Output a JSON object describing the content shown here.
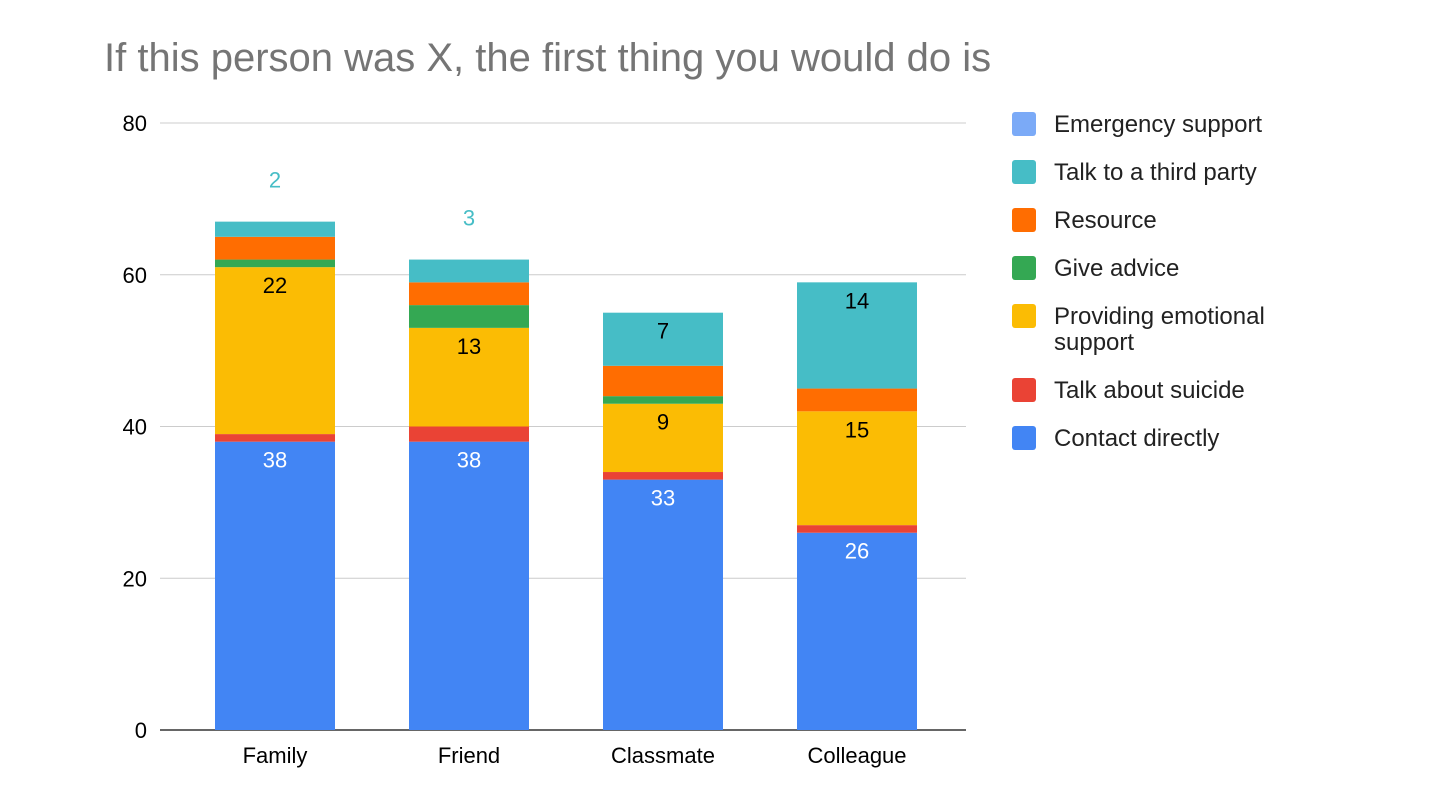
{
  "chart_data": {
    "type": "bar",
    "stacked": true,
    "title": "If this person was X, the first thing you would do is",
    "xlabel": "",
    "ylabel": "",
    "ylim": [
      0,
      80
    ],
    "yticks": [
      0,
      20,
      40,
      60,
      80
    ],
    "grid": true,
    "legend_position": "right",
    "categories": [
      "Family",
      "Friend",
      "Classmate",
      "Colleague"
    ],
    "series": [
      {
        "name": "Contact directly",
        "color": "#4285f4",
        "values": [
          38,
          38,
          33,
          26
        ],
        "labels": [
          "38",
          "38",
          "33",
          "26"
        ],
        "label_color": "#ffffff"
      },
      {
        "name": "Talk about suicide",
        "color": "#ea4335",
        "values": [
          1,
          2,
          1,
          1
        ],
        "labels": [
          "",
          "",
          "",
          ""
        ],
        "label_color": "#000000"
      },
      {
        "name": "Providing emotional support",
        "color": "#fbbc04",
        "values": [
          22,
          13,
          9,
          15
        ],
        "labels": [
          "22",
          "13",
          "9",
          "15"
        ],
        "label_color": "#000000"
      },
      {
        "name": "Give advice",
        "color": "#34a853",
        "values": [
          1,
          3,
          1,
          0
        ],
        "labels": [
          "",
          "",
          "",
          ""
        ],
        "label_color": "#000000"
      },
      {
        "name": "Resource",
        "color": "#ff6d01",
        "values": [
          3,
          3,
          4,
          3
        ],
        "labels": [
          "",
          "",
          "",
          ""
        ],
        "label_color": "#000000"
      },
      {
        "name": "Talk to a third party",
        "color": "#46bdc6",
        "values": [
          2,
          3,
          7,
          14
        ],
        "labels": [
          "2",
          "3",
          "7",
          "14"
        ],
        "label_color": "#000000"
      },
      {
        "name": "Emergency support",
        "color": "#7baaf7",
        "values": [
          0,
          0,
          0,
          0
        ],
        "labels": [
          "",
          "",
          "",
          ""
        ],
        "label_color": "#000000"
      }
    ],
    "legend_order": [
      "Emergency support",
      "Talk to a third party",
      "Resource",
      "Give advice",
      "Providing emotional support",
      "Talk about suicide",
      "Contact directly"
    ],
    "above_bar_labels": [
      "2",
      "3",
      "",
      ""
    ],
    "above_bar_label_color": "#46bdc6"
  }
}
